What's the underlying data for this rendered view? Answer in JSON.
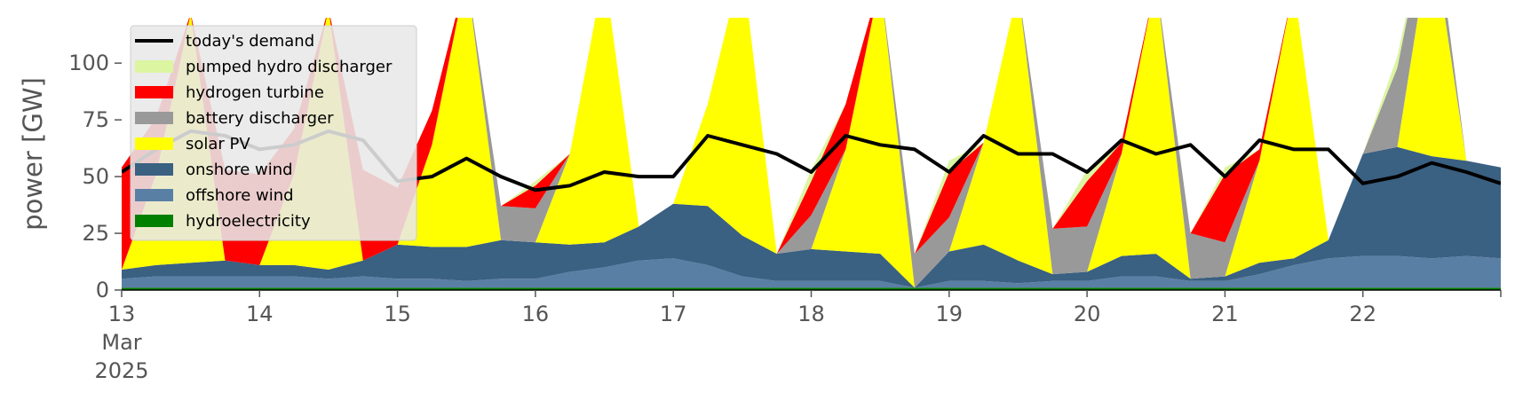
{
  "chart_data": {
    "type": "area",
    "ylabel": "power [GW]",
    "ylim": [
      0,
      120
    ],
    "yticks": [
      0,
      25,
      50,
      75,
      100
    ],
    "xlim": [
      "2025-03-13 00:00",
      "2025-03-23 00:00"
    ],
    "xticks": [
      {
        "date": "2025-03-13",
        "label": [
          "13",
          "Mar",
          "2025"
        ]
      },
      {
        "date": "2025-03-14",
        "label": [
          "14"
        ]
      },
      {
        "date": "2025-03-15",
        "label": [
          "15"
        ]
      },
      {
        "date": "2025-03-16",
        "label": [
          "16"
        ]
      },
      {
        "date": "2025-03-17",
        "label": [
          "17"
        ]
      },
      {
        "date": "2025-03-18",
        "label": [
          "18"
        ]
      },
      {
        "date": "2025-03-19",
        "label": [
          "19"
        ]
      },
      {
        "date": "2025-03-20",
        "label": [
          "20"
        ]
      },
      {
        "date": "2025-03-21",
        "label": [
          "21"
        ]
      },
      {
        "date": "2025-03-22",
        "label": [
          "22"
        ]
      }
    ],
    "background": "#ffffff",
    "grid": false,
    "legend_position": "top-left",
    "time": [
      "2025-03-13 00:00",
      "2025-03-13 06:00",
      "2025-03-13 12:00",
      "2025-03-13 18:00",
      "2025-03-14 00:00",
      "2025-03-14 06:00",
      "2025-03-14 12:00",
      "2025-03-14 18:00",
      "2025-03-15 00:00",
      "2025-03-15 06:00",
      "2025-03-15 12:00",
      "2025-03-15 18:00",
      "2025-03-16 00:00",
      "2025-03-16 06:00",
      "2025-03-16 12:00",
      "2025-03-16 18:00",
      "2025-03-17 00:00",
      "2025-03-17 06:00",
      "2025-03-17 12:00",
      "2025-03-17 18:00",
      "2025-03-18 00:00",
      "2025-03-18 06:00",
      "2025-03-18 12:00",
      "2025-03-18 18:00",
      "2025-03-19 00:00",
      "2025-03-19 06:00",
      "2025-03-19 12:00",
      "2025-03-19 18:00",
      "2025-03-20 00:00",
      "2025-03-20 06:00",
      "2025-03-20 12:00",
      "2025-03-20 18:00",
      "2025-03-21 00:00",
      "2025-03-21 06:00",
      "2025-03-21 12:00",
      "2025-03-21 18:00",
      "2025-03-22 00:00",
      "2025-03-22 06:00",
      "2025-03-22 12:00",
      "2025-03-22 18:00",
      "2025-03-23 00:00"
    ],
    "series": [
      {
        "name": "hydroelectricity",
        "color": "#008000",
        "values": [
          1.0,
          1.0,
          1.0,
          1.0,
          1.0,
          1.0,
          1.0,
          1.0,
          1.0,
          1.0,
          1.0,
          1.0,
          1.0,
          1.0,
          1.0,
          1.0,
          1.0,
          1.0,
          1.0,
          1.0,
          1.0,
          1.0,
          1.0,
          1.0,
          1.0,
          1.0,
          1.0,
          1.0,
          1.0,
          1.0,
          1.0,
          1.0,
          1.0,
          1.0,
          1.0,
          1.0,
          1.0,
          1.0,
          1.0,
          1.0,
          1.0
        ]
      },
      {
        "name": "offshore wind",
        "color": "#5a7fa4",
        "values": [
          4,
          5,
          5,
          5,
          5,
          5,
          4,
          5,
          4,
          4,
          3,
          4,
          4,
          7,
          9,
          12,
          13,
          10,
          5,
          3,
          3,
          3,
          3,
          0,
          3,
          3,
          2,
          3,
          3,
          5,
          5,
          3,
          3,
          6,
          10,
          13,
          14,
          14,
          13,
          14,
          13
        ]
      },
      {
        "name": "onshore wind",
        "color": "#3a6082",
        "values": [
          4,
          5,
          6,
          7,
          5,
          5,
          4,
          7,
          15,
          14,
          15,
          17,
          16,
          12,
          11,
          15,
          24,
          26,
          18,
          12,
          14,
          13,
          12,
          0,
          13,
          16,
          10,
          3,
          4,
          9,
          10,
          1,
          2,
          5,
          3,
          8,
          45,
          48,
          45,
          42,
          40
        ]
      },
      {
        "name": "solar PV",
        "color": "#ffff00",
        "values": [
          0,
          40,
          110,
          0,
          0,
          40,
          115,
          0,
          0,
          45,
          120,
          0,
          0,
          40,
          120,
          0,
          0,
          45,
          120,
          0,
          0,
          45,
          120,
          0,
          0,
          45,
          120,
          0,
          0,
          45,
          120,
          0,
          0,
          45,
          120,
          0,
          0,
          0,
          100,
          0,
          0
        ]
      },
      {
        "name": "battery discharger",
        "color": "#999999",
        "values": [
          0,
          0,
          0,
          0,
          0,
          0,
          0,
          0,
          0,
          0,
          0,
          15,
          15,
          0,
          0,
          0,
          0,
          0,
          0,
          0,
          15,
          0,
          0,
          15,
          15,
          0,
          0,
          20,
          20,
          0,
          0,
          20,
          15,
          0,
          0,
          0,
          0,
          35,
          15,
          0,
          0
        ]
      },
      {
        "name": "hydrogen turbine",
        "color": "#ff0000",
        "values": [
          45,
          25,
          0,
          40,
          40,
          20,
          0,
          40,
          25,
          15,
          0,
          0,
          10,
          0,
          0,
          0,
          0,
          0,
          0,
          0,
          15,
          20,
          0,
          0,
          20,
          0,
          0,
          0,
          20,
          5,
          0,
          0,
          30,
          5,
          0,
          0,
          0,
          0,
          0,
          0,
          0
        ]
      },
      {
        "name": "pumped hydro discharger",
        "color": "#dcf5a0",
        "values": [
          0,
          0,
          0,
          0,
          0,
          0,
          0,
          0,
          0,
          0,
          0,
          0,
          2,
          0,
          0,
          0,
          0,
          0,
          0,
          0,
          5,
          0,
          0,
          0,
          5,
          0,
          0,
          0,
          5,
          0,
          0,
          0,
          3,
          0,
          0,
          0,
          0,
          5,
          0,
          0,
          0
        ]
      }
    ],
    "demand": {
      "name": "today's demand",
      "color": "#000000",
      "values": [
        52,
        62,
        70,
        68,
        62,
        64,
        70,
        66,
        48,
        50,
        58,
        50,
        44,
        46,
        52,
        50,
        50,
        68,
        64,
        60,
        52,
        68,
        64,
        62,
        52,
        68,
        60,
        60,
        52,
        66,
        60,
        64,
        50,
        66,
        62,
        62,
        47,
        50,
        56,
        52,
        47
      ]
    },
    "legend": [
      {
        "label": "today's demand",
        "color": "#000000",
        "kind": "line"
      },
      {
        "label": "pumped hydro discharger",
        "color": "#dcf5a0",
        "kind": "patch"
      },
      {
        "label": "hydrogen turbine",
        "color": "#ff0000",
        "kind": "patch"
      },
      {
        "label": "battery discharger",
        "color": "#999999",
        "kind": "patch"
      },
      {
        "label": "solar PV",
        "color": "#ffff00",
        "kind": "patch"
      },
      {
        "label": "onshore wind",
        "color": "#3a6082",
        "kind": "patch"
      },
      {
        "label": "offshore wind",
        "color": "#5a7fa4",
        "kind": "patch"
      },
      {
        "label": "hydroelectricity",
        "color": "#008000",
        "kind": "patch"
      }
    ]
  }
}
